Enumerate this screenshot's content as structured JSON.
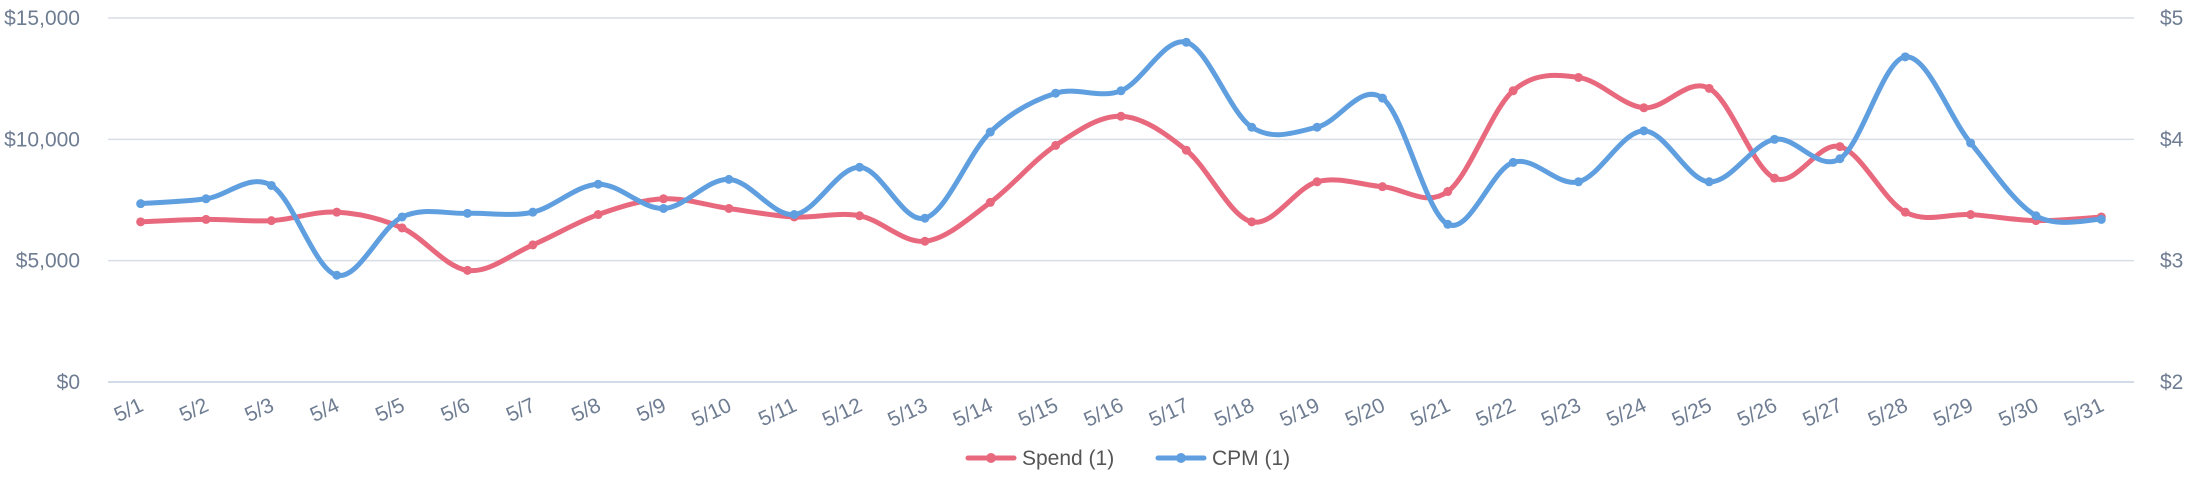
{
  "chart_data": {
    "type": "line",
    "categories": [
      "5/1",
      "5/2",
      "5/3",
      "5/4",
      "5/5",
      "5/6",
      "5/7",
      "5/8",
      "5/9",
      "5/10",
      "5/11",
      "5/12",
      "5/13",
      "5/14",
      "5/15",
      "5/16",
      "5/17",
      "5/18",
      "5/19",
      "5/20",
      "5/21",
      "5/22",
      "5/23",
      "5/24",
      "5/25",
      "5/26",
      "5/27",
      "5/28",
      "5/29",
      "5/30",
      "5/31"
    ],
    "y_left": {
      "ticks": [
        "$0",
        "$5,000",
        "$10,000",
        "$15,000"
      ],
      "min": 0,
      "max": 15000
    },
    "y_right": {
      "ticks": [
        "$2",
        "$3",
        "$4",
        "$5"
      ],
      "min": 2,
      "max": 5
    },
    "series": [
      {
        "name": "Spend (1)",
        "axis": "left",
        "color": "#e8697d",
        "values": [
          6600,
          6700,
          6650,
          7000,
          6350,
          4600,
          5650,
          6900,
          7550,
          7150,
          6800,
          6850,
          5800,
          7400,
          9750,
          10950,
          9550,
          6600,
          8250,
          8050,
          7850,
          12000,
          12550,
          11300,
          12100,
          8400,
          9700,
          7000,
          6900,
          6650,
          6800
        ]
      },
      {
        "name": "CPM (1)",
        "axis": "right",
        "color": "#5f9fe0",
        "values": [
          3.47,
          3.51,
          3.62,
          2.88,
          3.36,
          3.39,
          3.4,
          3.63,
          3.43,
          3.67,
          3.38,
          3.77,
          3.35,
          4.06,
          4.38,
          4.4,
          4.8,
          4.1,
          4.1,
          4.34,
          3.3,
          3.81,
          3.65,
          4.07,
          3.65,
          4.0,
          3.84,
          4.68,
          3.97,
          3.37,
          3.34
        ]
      }
    ],
    "grid": true,
    "legend_position": "bottom-center"
  }
}
